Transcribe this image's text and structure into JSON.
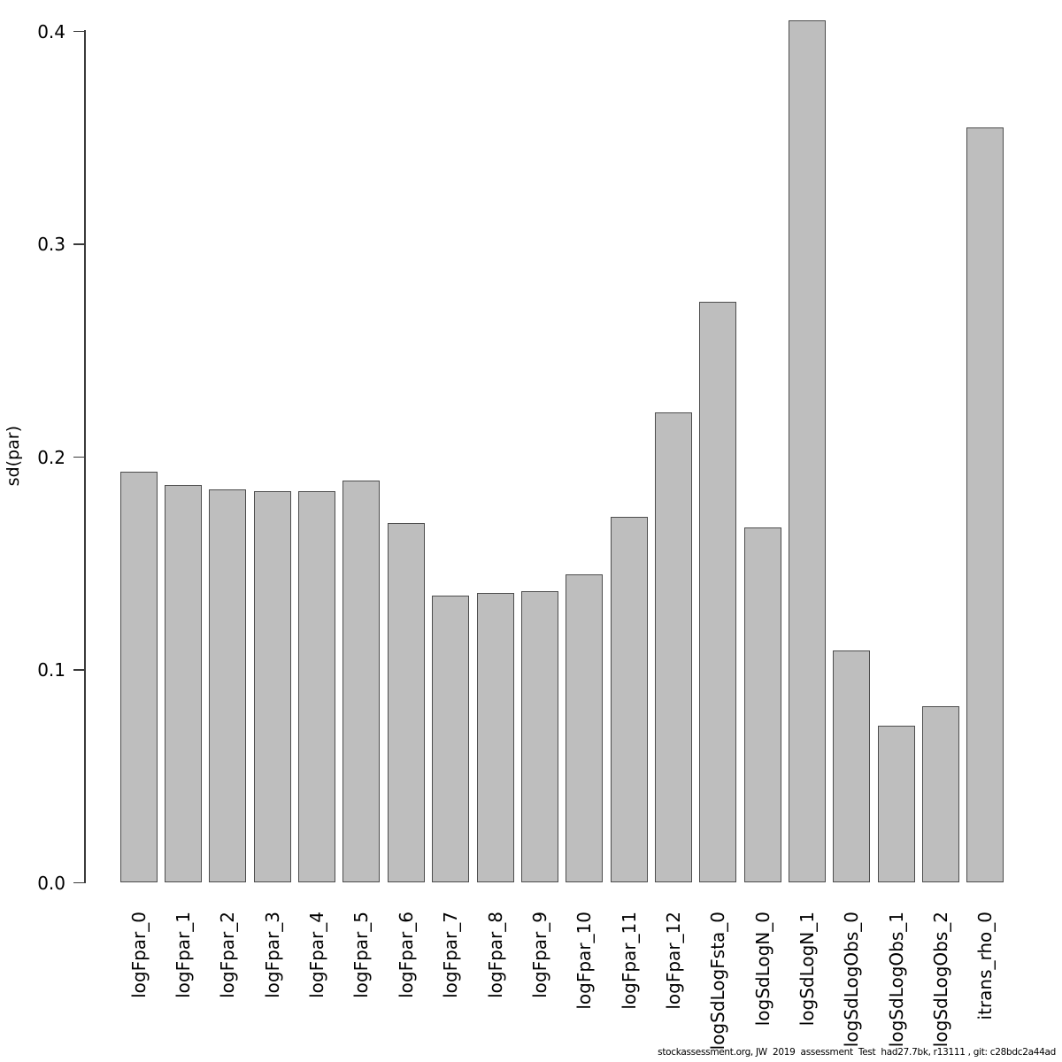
{
  "chart_data": {
    "type": "bar",
    "categories": [
      "logFpar_0",
      "logFpar_1",
      "logFpar_2",
      "logFpar_3",
      "logFpar_4",
      "logFpar_5",
      "logFpar_6",
      "logFpar_7",
      "logFpar_8",
      "logFpar_9",
      "logFpar_10",
      "logFpar_11",
      "logFpar_12",
      "logSdLogFsta_0",
      "logSdLogN_0",
      "logSdLogN_1",
      "logSdLogObs_0",
      "logSdLogObs_1",
      "logSdLogObs_2",
      "itrans_rho_0"
    ],
    "values": [
      0.193,
      0.187,
      0.185,
      0.184,
      0.184,
      0.189,
      0.169,
      0.135,
      0.136,
      0.137,
      0.145,
      0.172,
      0.221,
      0.273,
      0.167,
      0.405,
      0.109,
      0.074,
      0.083,
      0.355
    ],
    "title": "",
    "xlabel": "",
    "ylabel": "sd(par)",
    "ylim": [
      0.0,
      0.405
    ],
    "yticks": [
      0.0,
      0.1,
      0.2,
      0.3,
      0.4
    ],
    "ytick_labels": [
      "0.0",
      "0.1",
      "0.2",
      "0.3",
      "0.4"
    ],
    "grid": false,
    "legend_position": "none",
    "bar_fill_color": "#bebebe",
    "bar_border_color": "#4d4d4d",
    "axis_color": "#3a3a3a"
  },
  "footer": {
    "caption": "stockassessment.org, JW  2019  assessment  Test  had27.7bk, r13111 , git: c28bdc2a44ad"
  }
}
